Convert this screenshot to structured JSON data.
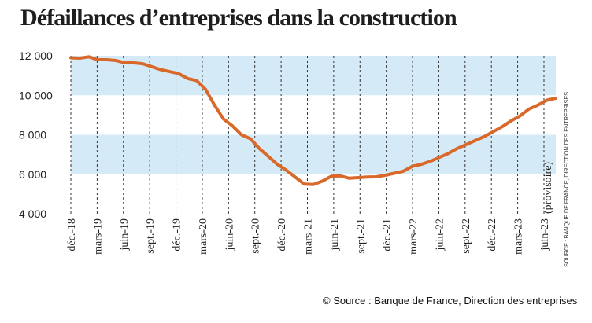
{
  "chart_data": {
    "type": "line",
    "title": "Défaillances d’entreprises dans la construction",
    "x_labels": [
      "déc.-18",
      "mars-19",
      "juin-19",
      "sept.-19",
      "déc.-19",
      "mars-20",
      "juin-20",
      "sept.-20",
      "déc.-20",
      "mars-21",
      "juin-21",
      "sept.-21",
      "déc.-21",
      "mars-22",
      "juin-22",
      "sept.-22",
      "déc.-22",
      "mars-23",
      "juin-23"
    ],
    "y_ticks": [
      "12 000",
      "10 000",
      "8 000",
      "6 000",
      "4 000"
    ],
    "ylim": [
      4000,
      12000
    ],
    "annotation": "(provisoire)",
    "source_side": "SOURCE : BANQUE DE FRANCE, DIRECTION DES ENTREPRISES",
    "background_bands": [
      [
        10000,
        12000
      ],
      [
        6000,
        8000
      ]
    ],
    "grid": "vertical dashed lines at each tick",
    "colors": {
      "line": "#d9692a",
      "band": "#d5eaf7",
      "text": "#222222"
    },
    "series": [
      {
        "values": [
          11900,
          11880,
          11950,
          11800,
          11800,
          11760,
          11650,
          11640,
          11600,
          11450,
          11300,
          11200,
          11100,
          10850,
          10750,
          10300,
          9500,
          8800,
          8450,
          8000,
          7800,
          7300,
          6900,
          6500,
          6200,
          5850,
          5500,
          5480,
          5650,
          5900,
          5920,
          5800,
          5830,
          5860,
          5870,
          5950,
          6050,
          6150,
          6400,
          6500,
          6650,
          6850,
          7050,
          7300,
          7500,
          7700,
          7900,
          8150,
          8400,
          8700,
          8950,
          9300,
          9500,
          9750,
          9850
        ]
      }
    ]
  },
  "footer": {
    "credit": "© Source : Banque de France, Direction des entreprises"
  }
}
